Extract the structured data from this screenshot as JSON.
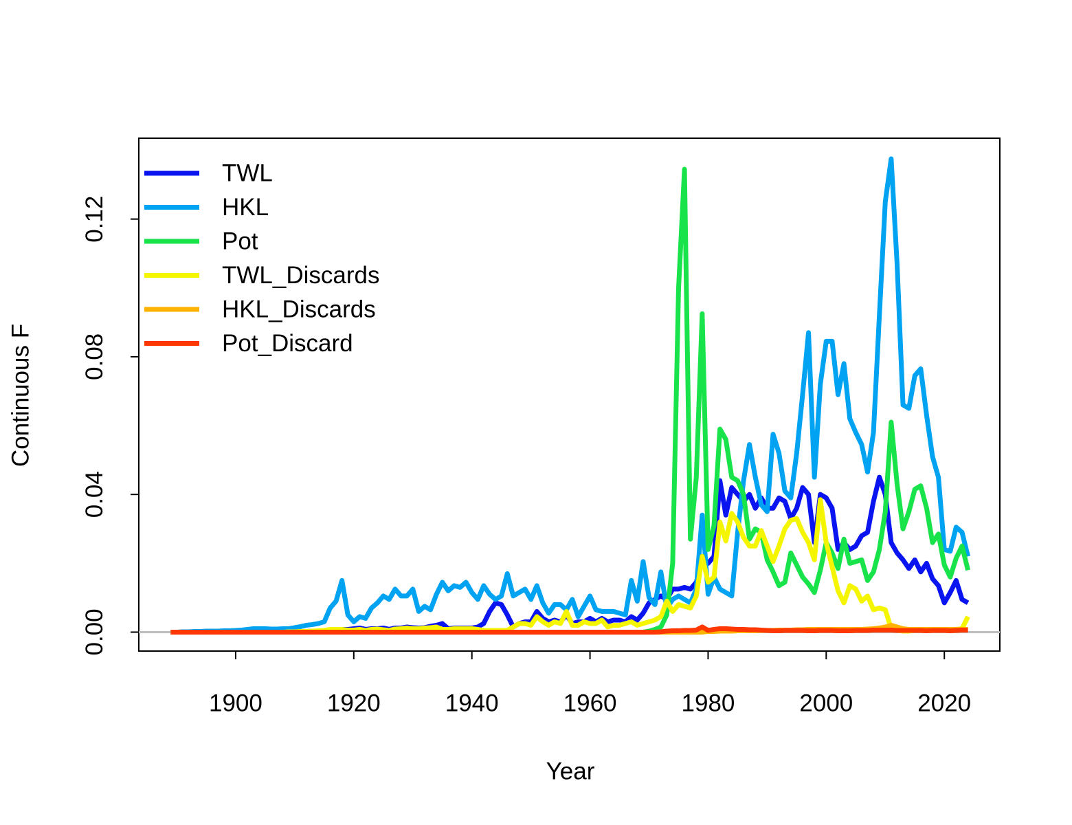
{
  "chart_data": {
    "type": "line",
    "xlabel": "Year",
    "ylabel": "Continuous F",
    "x": [
      1889,
      1890,
      1891,
      1892,
      1893,
      1894,
      1895,
      1896,
      1897,
      1898,
      1899,
      1900,
      1901,
      1902,
      1903,
      1904,
      1905,
      1906,
      1907,
      1908,
      1909,
      1910,
      1911,
      1912,
      1913,
      1914,
      1915,
      1916,
      1917,
      1918,
      1919,
      1920,
      1921,
      1922,
      1923,
      1924,
      1925,
      1926,
      1927,
      1928,
      1929,
      1930,
      1931,
      1932,
      1933,
      1934,
      1935,
      1936,
      1937,
      1938,
      1939,
      1940,
      1941,
      1942,
      1943,
      1944,
      1945,
      1946,
      1947,
      1948,
      1949,
      1950,
      1951,
      1952,
      1953,
      1954,
      1955,
      1956,
      1957,
      1958,
      1959,
      1960,
      1961,
      1962,
      1963,
      1964,
      1965,
      1966,
      1967,
      1968,
      1969,
      1970,
      1971,
      1972,
      1973,
      1974,
      1975,
      1976,
      1977,
      1978,
      1979,
      1980,
      1981,
      1982,
      1983,
      1984,
      1985,
      1986,
      1987,
      1988,
      1989,
      1990,
      1991,
      1992,
      1993,
      1994,
      1995,
      1996,
      1997,
      1998,
      1999,
      2000,
      2001,
      2002,
      2003,
      2004,
      2005,
      2006,
      2007,
      2008,
      2009,
      2010,
      2011,
      2012,
      2013,
      2014,
      2015,
      2016,
      2017,
      2018,
      2019,
      2020,
      2021,
      2022,
      2023,
      2024
    ],
    "series": [
      {
        "name": "TWL",
        "color": "#0A14F0",
        "values": [
          0,
          0,
          0,
          0,
          0,
          0,
          0,
          0,
          0,
          0,
          0,
          0,
          0,
          0,
          0,
          0,
          0,
          0,
          0,
          0,
          0.0001,
          0.0001,
          0.0002,
          0.0002,
          0.0003,
          0.0003,
          0.0004,
          0.0005,
          0.0006,
          0.0008,
          0.0008,
          0.001,
          0.0012,
          0.0008,
          0.001,
          0.001,
          0.0012,
          0.0008,
          0.0012,
          0.0012,
          0.0015,
          0.0013,
          0.0012,
          0.0013,
          0.0017,
          0.002,
          0.0025,
          0.001,
          0.0012,
          0.0012,
          0.0012,
          0.0012,
          0.0015,
          0.0025,
          0.006,
          0.0085,
          0.008,
          0.005,
          0.0015,
          0.0025,
          0.003,
          0.003,
          0.006,
          0.004,
          0.003,
          0.0035,
          0.003,
          0.005,
          0.0025,
          0.003,
          0.003,
          0.004,
          0.003,
          0.004,
          0.003,
          0.0035,
          0.0035,
          0.003,
          0.0045,
          0.0035,
          0.0055,
          0.0085,
          0.0095,
          0.0105,
          0.0095,
          0.0125,
          0.0125,
          0.013,
          0.0125,
          0.0145,
          0.021,
          0.02,
          0.022,
          0.044,
          0.034,
          0.042,
          0.04,
          0.038,
          0.04,
          0.036,
          0.039,
          0.036,
          0.036,
          0.039,
          0.038,
          0.033,
          0.036,
          0.042,
          0.04,
          0.026,
          0.04,
          0.039,
          0.036,
          0.024,
          0.026,
          0.024,
          0.025,
          0.028,
          0.029,
          0.038,
          0.045,
          0.04,
          0.026,
          0.023,
          0.021,
          0.0185,
          0.021,
          0.0175,
          0.02,
          0.0155,
          0.0135,
          0.0085,
          0.0115,
          0.015,
          0.0095,
          0.0085
        ]
      },
      {
        "name": "HKL",
        "color": "#00A2F2",
        "values": [
          0,
          0,
          0.0001,
          0.0001,
          0.0002,
          0.0002,
          0.0003,
          0.0003,
          0.0003,
          0.0004,
          0.0004,
          0.0005,
          0.0006,
          0.0008,
          0.001,
          0.001,
          0.001,
          0.0009,
          0.0009,
          0.001,
          0.001,
          0.0013,
          0.0016,
          0.002,
          0.0022,
          0.0025,
          0.003,
          0.007,
          0.009,
          0.015,
          0.005,
          0.003,
          0.0045,
          0.004,
          0.007,
          0.0085,
          0.0105,
          0.0095,
          0.0125,
          0.0105,
          0.0105,
          0.0125,
          0.006,
          0.0075,
          0.0065,
          0.011,
          0.0145,
          0.012,
          0.0135,
          0.013,
          0.0145,
          0.0115,
          0.0095,
          0.0135,
          0.011,
          0.0095,
          0.0105,
          0.017,
          0.0105,
          0.0115,
          0.0125,
          0.0095,
          0.0135,
          0.0085,
          0.0055,
          0.008,
          0.008,
          0.0065,
          0.0095,
          0.0045,
          0.0075,
          0.0105,
          0.0065,
          0.006,
          0.006,
          0.006,
          0.0055,
          0.005,
          0.015,
          0.009,
          0.0205,
          0.01,
          0.008,
          0.0175,
          0.007,
          0.0095,
          0.0105,
          0.0095,
          0.0085,
          0.0125,
          0.034,
          0.011,
          0.016,
          0.0125,
          0.0115,
          0.0105,
          0.029,
          0.044,
          0.0545,
          0.045,
          0.037,
          0.035,
          0.0575,
          0.052,
          0.041,
          0.039,
          0.052,
          0.069,
          0.087,
          0.045,
          0.072,
          0.0845,
          0.0845,
          0.069,
          0.078,
          0.062,
          0.058,
          0.0545,
          0.0465,
          0.058,
          0.092,
          0.125,
          0.1375,
          0.107,
          0.066,
          0.065,
          0.0745,
          0.0765,
          0.063,
          0.051,
          0.045,
          0.024,
          0.0235,
          0.0305,
          0.029,
          0.022
        ]
      },
      {
        "name": "Pot",
        "color": "#19E34A",
        "values": [
          0,
          0,
          0,
          0,
          0,
          0,
          0,
          0,
          0,
          0,
          0,
          0,
          0,
          0,
          0,
          0,
          0,
          0,
          0,
          0,
          0,
          0,
          0,
          0,
          0,
          0,
          0,
          0,
          0,
          0,
          0,
          0,
          0,
          0,
          0,
          0,
          0,
          0,
          0,
          0,
          0,
          0,
          0,
          0,
          0,
          0,
          0,
          0,
          0,
          0,
          0,
          0,
          0,
          0,
          0,
          0,
          0,
          0,
          0,
          0,
          0,
          0,
          0,
          0,
          0,
          0,
          0,
          0,
          0,
          0,
          0,
          0,
          0,
          0,
          0,
          0,
          0,
          0,
          0,
          0,
          0,
          0.0003,
          0.0008,
          0.0015,
          0.005,
          0.02,
          0.1,
          0.1345,
          0.027,
          0.045,
          0.0925,
          0.024,
          0.031,
          0.059,
          0.056,
          0.045,
          0.044,
          0.04,
          0.027,
          0.03,
          0.029,
          0.021,
          0.0175,
          0.0135,
          0.0145,
          0.023,
          0.0195,
          0.016,
          0.014,
          0.0115,
          0.018,
          0.026,
          0.023,
          0.0185,
          0.027,
          0.02,
          0.0205,
          0.021,
          0.015,
          0.0175,
          0.024,
          0.035,
          0.061,
          0.043,
          0.03,
          0.035,
          0.0415,
          0.0425,
          0.036,
          0.026,
          0.0285,
          0.0195,
          0.016,
          0.0215,
          0.025,
          0.018
        ]
      },
      {
        "name": "TWL_Discards",
        "color": "#F5F500",
        "values": [
          0,
          0,
          0,
          0,
          0,
          0,
          0,
          0,
          0,
          0,
          0,
          0,
          0,
          0,
          0,
          0,
          0,
          0,
          0,
          0,
          0.0001,
          0.0001,
          0.0002,
          0.0002,
          0.0003,
          0.0004,
          0.0005,
          0.0008,
          0.0008,
          0.0008,
          0.0006,
          0.0006,
          0.0008,
          0.0005,
          0.0008,
          0.0009,
          0.0007,
          0.0005,
          0.0009,
          0.001,
          0.0012,
          0.001,
          0.001,
          0.0012,
          0.0013,
          0.0015,
          0.0008,
          0.0008,
          0.001,
          0.001,
          0.001,
          0.001,
          0.0008,
          0.0005,
          0.0005,
          0.0005,
          0.0005,
          0.0005,
          0.0015,
          0.0025,
          0.0025,
          0.002,
          0.0045,
          0.003,
          0.002,
          0.003,
          0.0025,
          0.006,
          0.002,
          0.002,
          0.003,
          0.0025,
          0.0025,
          0.0035,
          0.0015,
          0.002,
          0.002,
          0.0025,
          0.003,
          0.002,
          0.0025,
          0.003,
          0.0035,
          0.0045,
          0.009,
          0.006,
          0.008,
          0.0075,
          0.007,
          0.0105,
          0.022,
          0.0145,
          0.016,
          0.032,
          0.0265,
          0.0345,
          0.032,
          0.0275,
          0.025,
          0.025,
          0.0295,
          0.025,
          0.0205,
          0.025,
          0.03,
          0.0325,
          0.033,
          0.029,
          0.026,
          0.021,
          0.0385,
          0.026,
          0.019,
          0.012,
          0.0085,
          0.0135,
          0.0125,
          0.009,
          0.0105,
          0.0065,
          0.007,
          0.0065,
          0.001,
          0.0005,
          0.0003,
          0.0003,
          0.0005,
          0.0005,
          0.0005,
          0.0005,
          0.0008,
          0.0008,
          0.0008,
          0.0008,
          0.001,
          0.0045
        ]
      },
      {
        "name": "HKL_Discards",
        "color": "#FFB300",
        "values": [
          0,
          0,
          0,
          0,
          0,
          0,
          0,
          0,
          0,
          0,
          0,
          0,
          0,
          0,
          0,
          0,
          0,
          0,
          0,
          0,
          0,
          0,
          0,
          0,
          0,
          0,
          0,
          0,
          0,
          0,
          0,
          0,
          0,
          0,
          0,
          0,
          0,
          0,
          0,
          0,
          0,
          0,
          0,
          0,
          0,
          0,
          0,
          0,
          0,
          0,
          0,
          0,
          0,
          0,
          0,
          0,
          0,
          0,
          0,
          0,
          0,
          0,
          0,
          0,
          0,
          0,
          0,
          0,
          0,
          0,
          0,
          0,
          0,
          0,
          0,
          0,
          0,
          0,
          0,
          0,
          0,
          0,
          0,
          0,
          0,
          0,
          0,
          0,
          0,
          0,
          0,
          0.0002,
          0.0002,
          0.0003,
          0.0003,
          0.0003,
          0.0004,
          0.0004,
          0.0004,
          0.0004,
          0.0005,
          0.0005,
          0.0005,
          0.0006,
          0.0006,
          0.0006,
          0.0007,
          0.0007,
          0.0008,
          0.0008,
          0.0008,
          0.0008,
          0.0008,
          0.0008,
          0.0008,
          0.0008,
          0.0008,
          0.0008,
          0.0009,
          0.001,
          0.0012,
          0.0015,
          0.002,
          0.0015,
          0.001,
          0.0008,
          0.0008,
          0.0008,
          0.0008,
          0.0008,
          0.0008,
          0.0008,
          0.0008,
          0.0008,
          0.0008,
          0.0008
        ]
      },
      {
        "name": "Pot_Discard",
        "color": "#FF3700",
        "values": [
          0,
          0,
          0,
          0,
          0,
          0,
          0,
          0,
          0,
          0,
          0,
          0,
          0,
          0,
          0,
          0,
          0,
          0,
          0,
          0,
          0,
          0,
          0,
          0,
          0,
          0,
          0,
          0,
          0,
          0,
          0,
          0,
          0,
          0,
          0,
          0,
          0,
          0,
          0,
          0,
          0,
          0,
          0,
          0,
          0,
          0,
          0,
          0,
          0,
          0,
          0,
          0,
          0,
          0,
          0,
          0,
          0,
          0,
          0,
          0,
          0,
          0,
          0,
          0,
          0,
          0,
          0,
          0,
          0,
          0,
          0,
          0,
          0,
          0,
          0,
          0,
          0,
          0,
          0,
          0,
          0,
          0,
          0,
          0.0001,
          0.0003,
          0.0004,
          0.0004,
          0.0005,
          0.0005,
          0.0006,
          0.0015,
          0.0005,
          0.0008,
          0.001,
          0.001,
          0.0009,
          0.0008,
          0.0008,
          0.0007,
          0.0007,
          0.0006,
          0.0005,
          0.0004,
          0.0004,
          0.0005,
          0.0005,
          0.0005,
          0.0005,
          0.0004,
          0.0004,
          0.0005,
          0.0005,
          0.0005,
          0.0004,
          0.0004,
          0.0004,
          0.0005,
          0.0005,
          0.0005,
          0.0006,
          0.0006,
          0.0006,
          0.0006,
          0.0005,
          0.0005,
          0.0005,
          0.0005,
          0.0005,
          0.0004,
          0.0005,
          0.0005,
          0.0005,
          0.0004,
          0.0005,
          0.0006,
          0.0006
        ]
      }
    ],
    "xlim": [
      1883.6,
      2029.4
    ],
    "ylim": [
      -0.0055,
      0.1435
    ],
    "xticks": [
      1900,
      1920,
      1940,
      1960,
      1980,
      2000,
      2020
    ],
    "yticks": [
      {
        "value": 0,
        "label": "0.00"
      },
      {
        "value": 0.04,
        "label": "0.04"
      },
      {
        "value": 0.08,
        "label": "0.08"
      },
      {
        "value": 0.12,
        "label": "0.12"
      }
    ],
    "hline": 0,
    "legend": "top-left"
  }
}
